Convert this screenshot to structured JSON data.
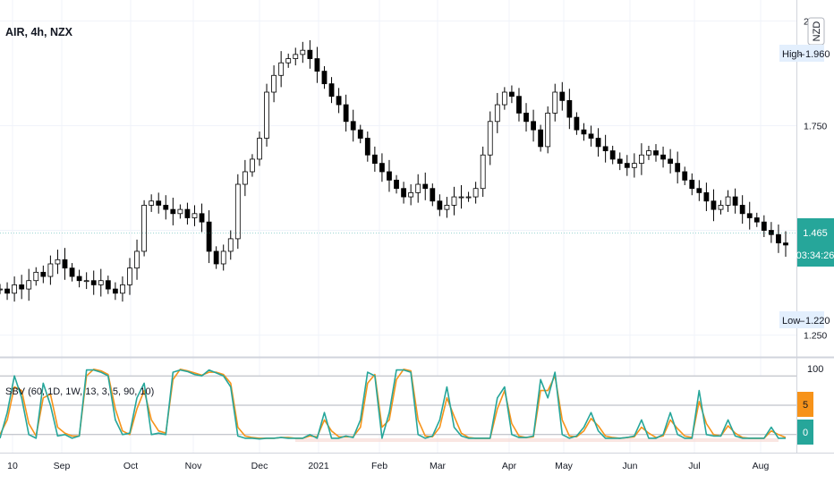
{
  "header": {
    "symbol_title": "AIR, 4h, NZX",
    "currency": "NZD"
  },
  "price_pane": {
    "high_label": "High",
    "high_value": "1.960",
    "low_label": "Low",
    "low_value": "1.220",
    "last_price": "1.465",
    "countdown": "03:34:26",
    "last_price_color": "#26a69a"
  },
  "indicator": {
    "legend": "SBV (60, 1D, 1W, 13, 3, 5, 90, 10)",
    "badge_upper": "5",
    "badge_lower": "0",
    "badge_upper_color": "#f7931a",
    "badge_lower_color": "#26a69a",
    "teal_color": "#26a69a",
    "orange_color": "#f7931a"
  },
  "chart_data": [
    {
      "type": "candlestick",
      "title": "AIR, 4h, NZX",
      "ylim": [
        1.2,
        2.05
      ],
      "yticks": [
        "2",
        "1.750",
        "1.500",
        "1.250"
      ],
      "x_ticks": [
        "10",
        "Sep",
        "Oct",
        "Nov",
        "Dec",
        "2021",
        "Feb",
        "Mar",
        "Apr",
        "May",
        "Jun",
        "Jul",
        "Aug"
      ],
      "close_series": [
        1.36,
        1.35,
        1.37,
        1.36,
        1.38,
        1.4,
        1.39,
        1.42,
        1.43,
        1.41,
        1.39,
        1.38,
        1.38,
        1.37,
        1.38,
        1.36,
        1.35,
        1.37,
        1.41,
        1.45,
        1.56,
        1.57,
        1.56,
        1.55,
        1.54,
        1.55,
        1.53,
        1.54,
        1.52,
        1.45,
        1.42,
        1.45,
        1.48,
        1.61,
        1.64,
        1.67,
        1.72,
        1.83,
        1.87,
        1.9,
        1.91,
        1.92,
        1.93,
        1.91,
        1.88,
        1.85,
        1.82,
        1.8,
        1.76,
        1.74,
        1.72,
        1.68,
        1.66,
        1.64,
        1.62,
        1.6,
        1.58,
        1.59,
        1.61,
        1.6,
        1.57,
        1.55,
        1.56,
        1.58,
        1.58,
        1.58,
        1.6,
        1.68,
        1.76,
        1.8,
        1.83,
        1.82,
        1.78,
        1.76,
        1.74,
        1.7,
        1.78,
        1.83,
        1.81,
        1.77,
        1.74,
        1.73,
        1.72,
        1.7,
        1.69,
        1.67,
        1.66,
        1.65,
        1.66,
        1.68,
        1.69,
        1.68,
        1.67,
        1.66,
        1.64,
        1.62,
        1.6,
        1.59,
        1.57,
        1.55,
        1.56,
        1.58,
        1.56,
        1.54,
        1.53,
        1.52,
        1.5,
        1.49,
        1.47,
        1.465
      ],
      "high": 1.96,
      "low": 1.22,
      "last": 1.465
    },
    {
      "type": "line",
      "title": "SBV (60, 1D, 1W, 13, 3, 5, 90, 10)",
      "ylim": [
        0,
        100
      ],
      "yticks": [
        "100"
      ],
      "bands": [
        90,
        10
      ],
      "series": [
        {
          "name": "",
          "color": "#26a69a",
          "values": [
            5,
            40,
            90,
            60,
            10,
            5,
            80,
            50,
            8,
            10,
            5,
            8,
            98,
            98,
            95,
            90,
            30,
            10,
            12,
            60,
            80,
            10,
            12,
            10,
            95,
            98,
            96,
            92,
            90,
            98,
            94,
            90,
            75,
            8,
            5,
            5,
            4,
            5,
            5,
            6,
            5,
            5,
            5,
            10,
            5,
            40,
            5,
            5,
            8,
            6,
            30,
            95,
            90,
            5,
            40,
            98,
            98,
            95,
            10,
            5,
            8,
            30,
            75,
            20,
            8,
            5,
            5,
            5,
            5,
            60,
            75,
            10,
            6,
            6,
            8,
            85,
            60,
            95,
            10,
            5,
            8,
            20,
            40,
            15,
            5,
            5,
            5,
            6,
            8,
            30,
            5,
            5,
            10,
            40,
            10,
            5,
            5,
            70,
            10,
            8,
            8,
            30,
            8,
            5,
            5,
            5,
            5,
            20,
            5,
            5
          ]
        },
        {
          "name": "",
          "color": "#f7931a",
          "values": [
            10,
            30,
            75,
            70,
            25,
            8,
            60,
            65,
            20,
            12,
            8,
            8,
            90,
            99,
            97,
            92,
            45,
            15,
            10,
            45,
            70,
            30,
            15,
            12,
            85,
            99,
            97,
            94,
            91,
            95,
            95,
            92,
            80,
            20,
            8,
            6,
            5,
            5,
            5,
            6,
            6,
            5,
            5,
            8,
            7,
            30,
            15,
            7,
            7,
            7,
            20,
            80,
            92,
            20,
            30,
            85,
            99,
            97,
            30,
            8,
            7,
            20,
            60,
            35,
            12,
            6,
            5,
            5,
            5,
            45,
            70,
            25,
            8,
            6,
            7,
            70,
            70,
            90,
            30,
            8,
            7,
            15,
            32,
            22,
            8,
            6,
            5,
            6,
            7,
            20,
            12,
            6,
            8,
            30,
            18,
            8,
            6,
            55,
            25,
            10,
            8,
            22,
            12,
            6,
            5,
            5,
            5,
            15,
            10,
            6
          ]
        }
      ]
    }
  ]
}
